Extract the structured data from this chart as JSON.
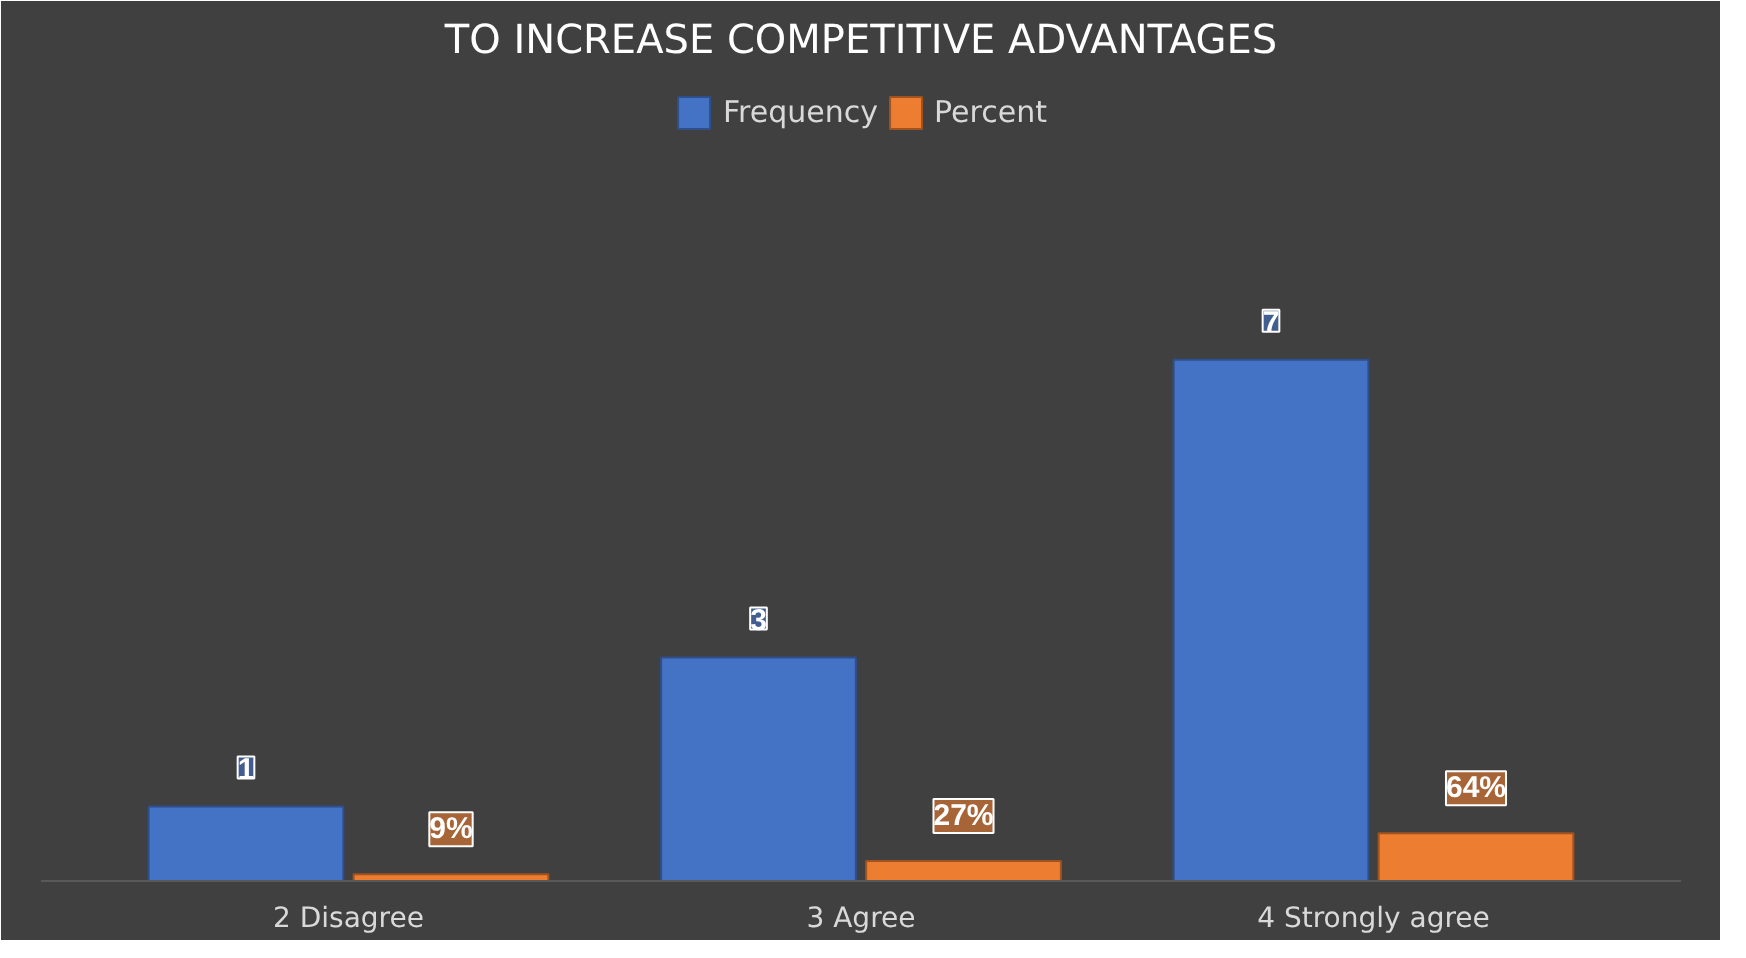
{
  "chart_data": {
    "type": "bar",
    "title": "TO INCREASE COMPETITIVE ADVANTAGES",
    "categories": [
      "2 Disagree",
      "3 Agree",
      "4 Strongly agree"
    ],
    "series": [
      {
        "name": "Frequency",
        "color": "#4472c4",
        "values": [
          1,
          3,
          7
        ],
        "value_labels": [
          "1",
          "3",
          "7"
        ]
      },
      {
        "name": "Percent",
        "color": "#ed7d31",
        "values": [
          0.09,
          0.27,
          0.64
        ],
        "value_labels": [
          "9%",
          "27%",
          "64%"
        ]
      }
    ],
    "legend": "top"
  }
}
